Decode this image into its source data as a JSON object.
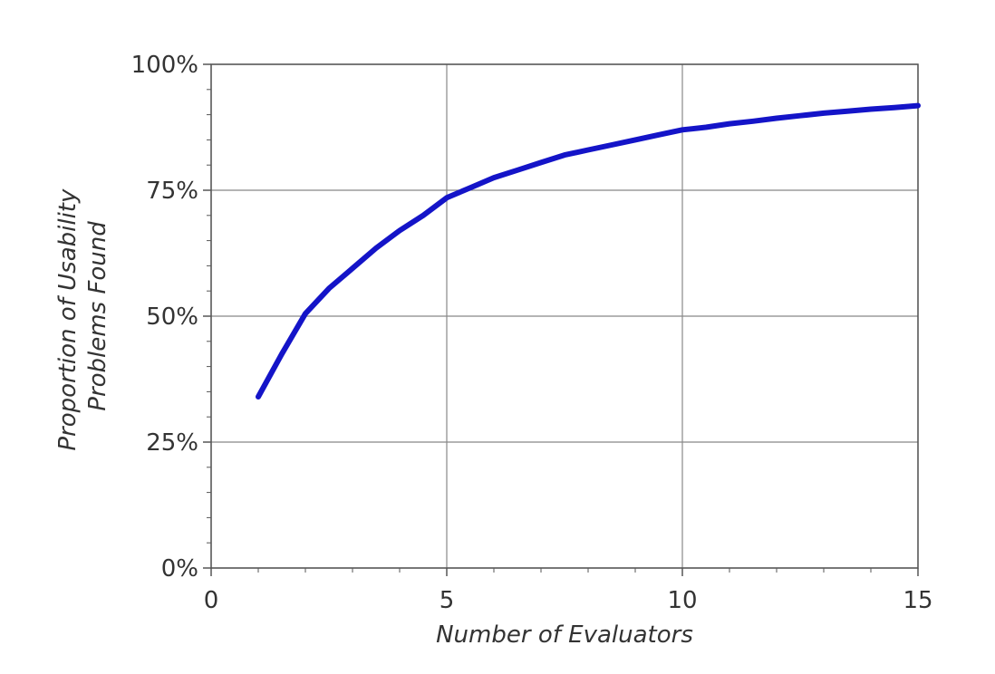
{
  "chart_data": {
    "type": "line",
    "title": "",
    "xlabel": "Number of Evaluators",
    "ylabel_lines": [
      "Proportion of Usability",
      "Problems Found"
    ],
    "xlim": [
      0,
      15
    ],
    "ylim": [
      0,
      100
    ],
    "x_ticks": [
      {
        "value": 0,
        "label": "0"
      },
      {
        "value": 5,
        "label": "5"
      },
      {
        "value": 10,
        "label": "10"
      },
      {
        "value": 15,
        "label": "15"
      }
    ],
    "y_ticks": [
      {
        "value": 0,
        "label": "0%"
      },
      {
        "value": 25,
        "label": "25%"
      },
      {
        "value": 50,
        "label": "50%"
      },
      {
        "value": 75,
        "label": "75%"
      },
      {
        "value": 100,
        "label": "100%"
      }
    ],
    "x_minor_step": 1,
    "y_minor_step": 5,
    "grid": true,
    "line_color": "#1414c8",
    "series": [
      {
        "x": [
          1,
          1.5,
          2,
          2.5,
          3,
          3.5,
          4,
          4.5,
          5,
          5.5,
          6,
          6.5,
          7,
          7.5,
          8,
          8.5,
          9,
          9.5,
          10,
          10.5,
          11,
          11.5,
          12,
          12.5,
          13,
          13.5,
          14,
          14.5,
          15
        ],
        "y": [
          34,
          42.5,
          50.5,
          55.5,
          59.5,
          63.5,
          67,
          70,
          73.5,
          75.5,
          77.5,
          79,
          80.5,
          82,
          83,
          84,
          85,
          86,
          87,
          87.5,
          88.2,
          88.7,
          89.3,
          89.8,
          90.3,
          90.7,
          91.1,
          91.4,
          91.8
        ]
      }
    ]
  }
}
